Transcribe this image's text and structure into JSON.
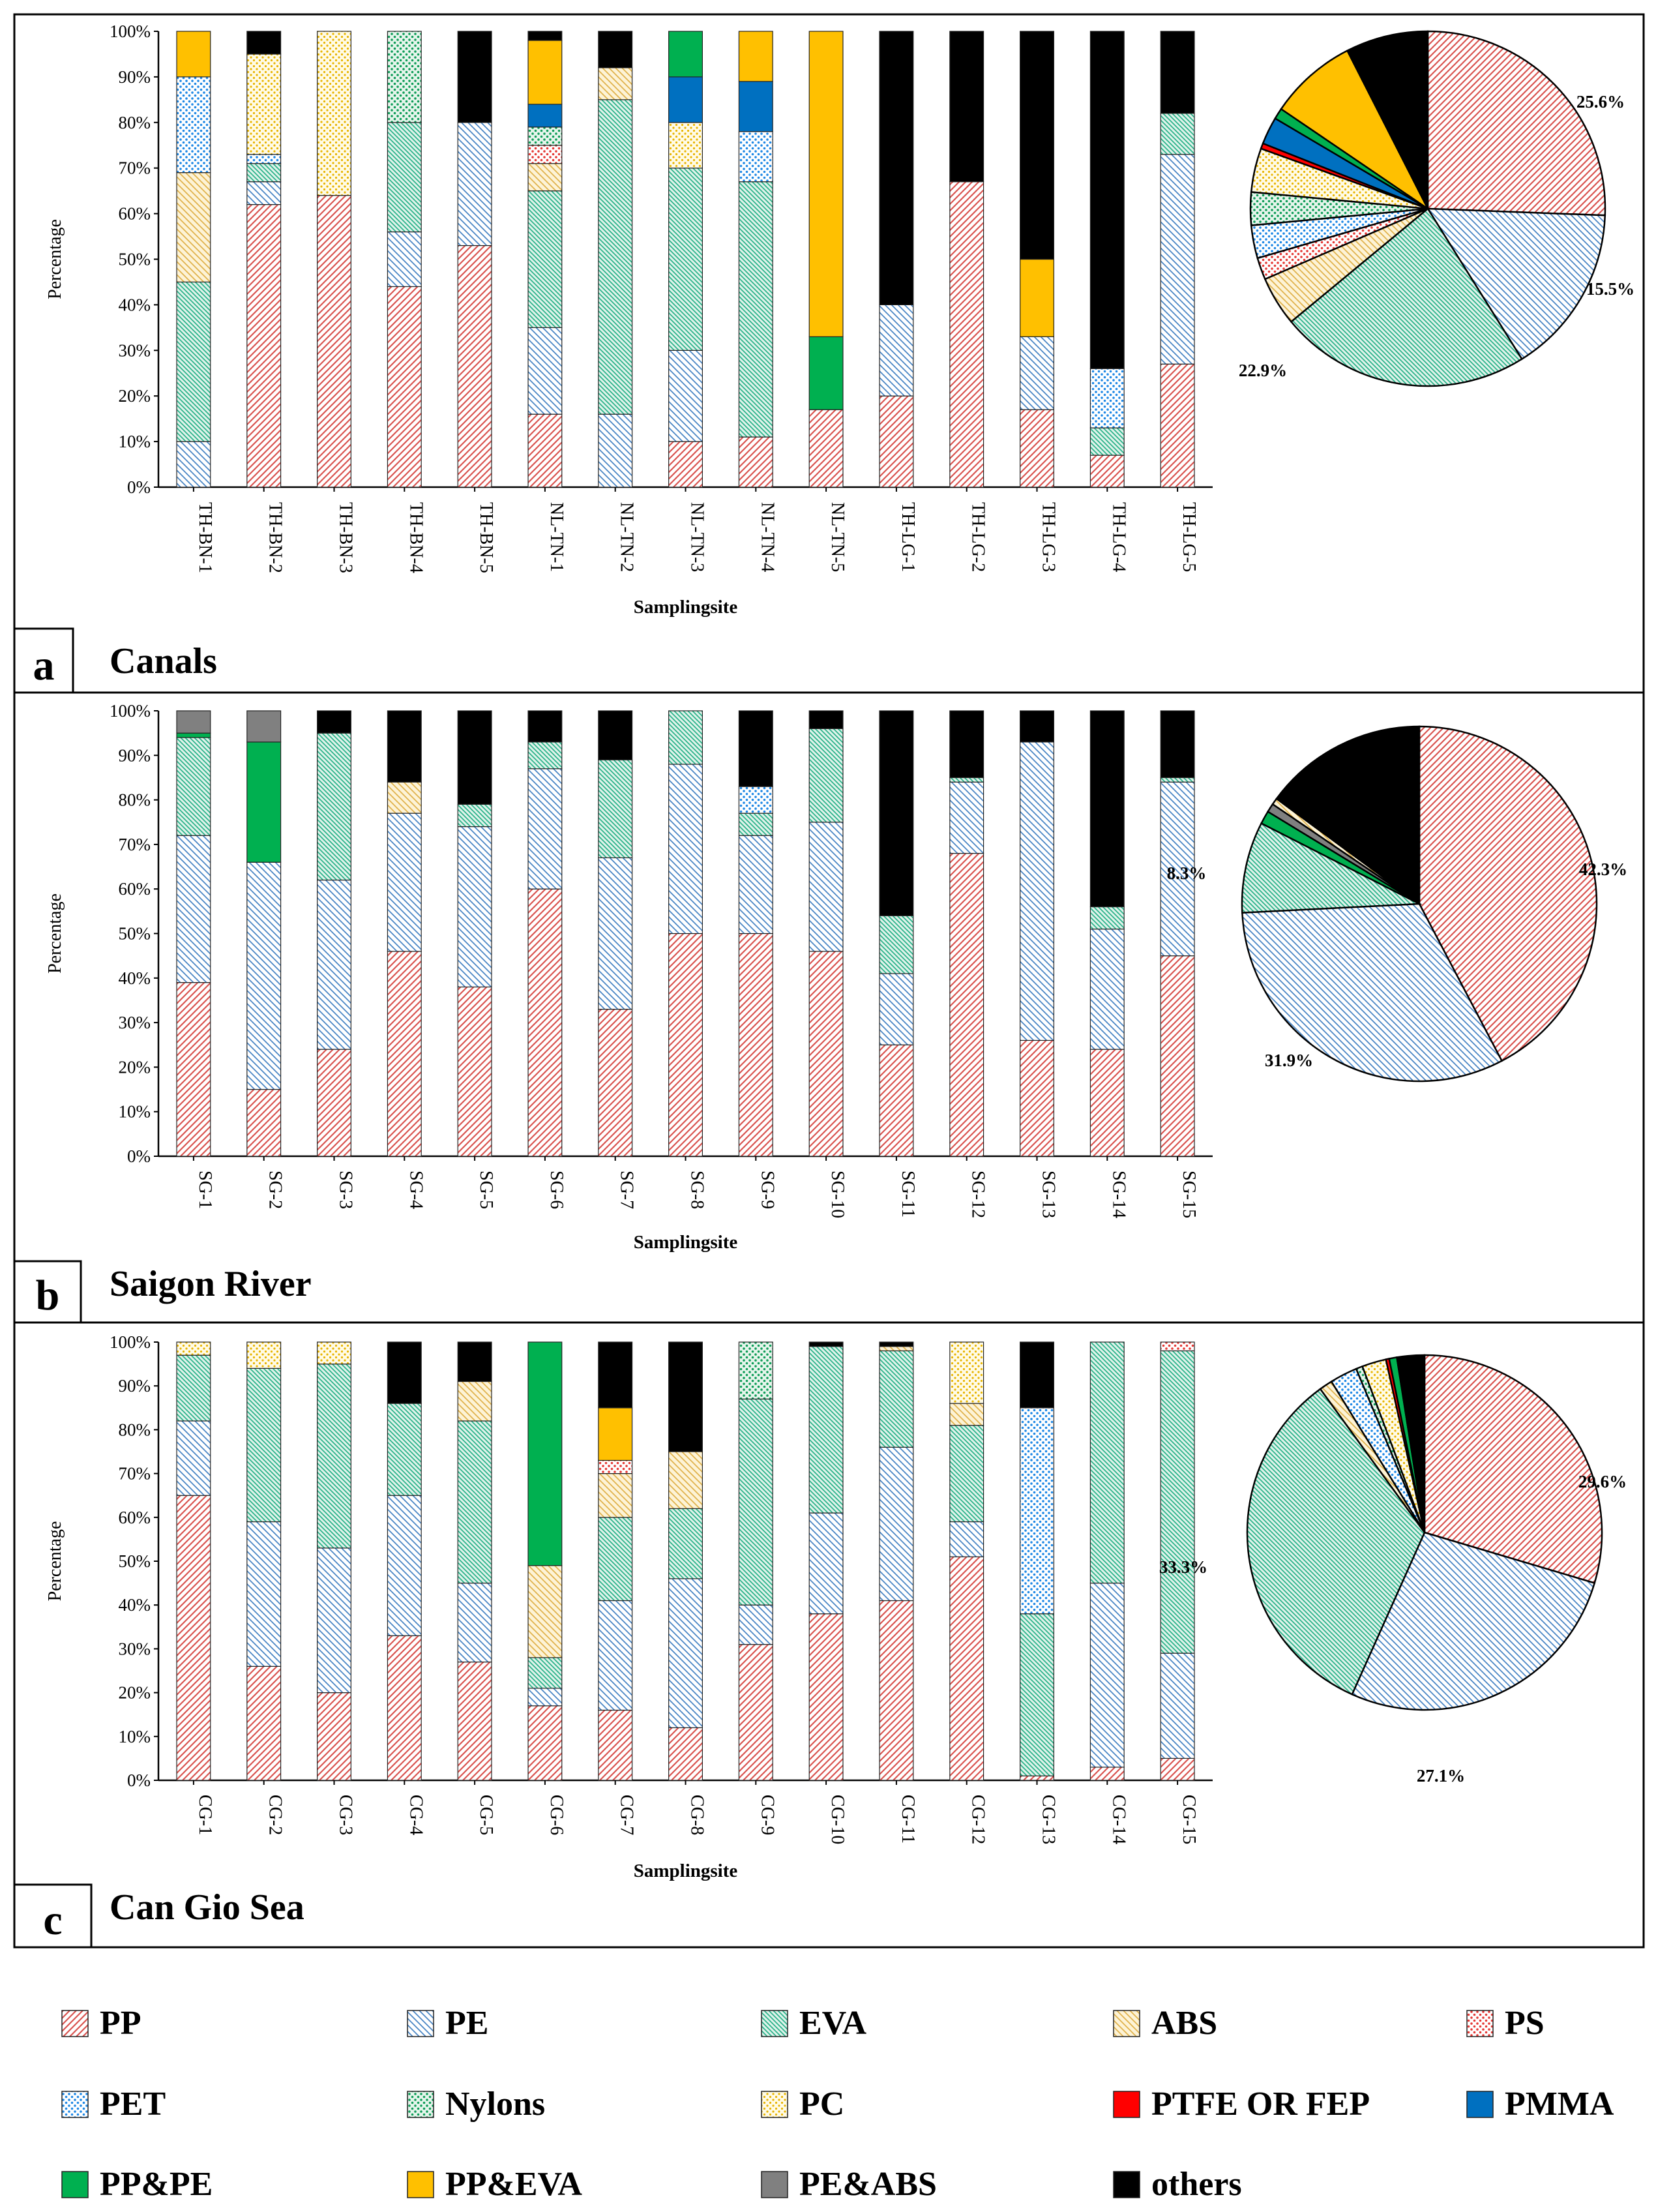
{
  "series": [
    "PP",
    "PE",
    "EVA",
    "ABS",
    "PS",
    "PET",
    "Nylons",
    "PC",
    "PTFE OR FEP",
    "PMMA",
    "PP&PE",
    "PP&EVA",
    "PE&ABS",
    "others"
  ],
  "styles": {
    "PP": {
      "color": "#d9534f",
      "pattern": "diag-fwd"
    },
    "PE": {
      "color": "#4a86c5",
      "pattern": "diag-bwd"
    },
    "EVA": {
      "color": "#2bb28a",
      "pattern": "diag-bwd-tight"
    },
    "ABS": {
      "color": "#e0b24c",
      "pattern": "diag-bwd"
    },
    "PS": {
      "color": "#e53935",
      "pattern": "dots-red"
    },
    "PET": {
      "color": "#1e88e5",
      "pattern": "dots-blue"
    },
    "Nylons": {
      "color": "#0f9d58",
      "pattern": "dots-green"
    },
    "PC": {
      "color": "#f2c200",
      "pattern": "dots-yellow"
    },
    "PTFE OR FEP": {
      "color": "#ff0000",
      "pattern": "solid"
    },
    "PMMA": {
      "color": "#0070c0",
      "pattern": "solid"
    },
    "PP&PE": {
      "color": "#00b050",
      "pattern": "solid"
    },
    "PP&EVA": {
      "color": "#ffc000",
      "pattern": "solid"
    },
    "PE&ABS": {
      "color": "#808080",
      "pattern": "solid"
    },
    "others": {
      "color": "#000000",
      "pattern": "solid"
    }
  },
  "chart_data": [
    {
      "type": "bar",
      "panel_letter": "a",
      "panel_title": "Canals",
      "xlabel": "Samplingsite",
      "ylabel": "Percentage",
      "ylim": [
        0,
        100
      ],
      "y_ticks": [
        "0%",
        "10%",
        "20%",
        "30%",
        "40%",
        "50%",
        "60%",
        "70%",
        "80%",
        "90%",
        "100%"
      ],
      "categories": [
        "TH-BN-1",
        "TH-BN-2",
        "TH-BN-3",
        "TH-BN-4",
        "TH-BN-5",
        "NL-TN-1",
        "NL-TN-2",
        "NL-TN-3",
        "NL-TN-4",
        "NL-TN-5",
        "TH-LG-1",
        "TH-LG-2",
        "TH-LG-3",
        "TH-LG-4",
        "TH-LG-5"
      ],
      "stacks": [
        [
          [
            "PE",
            10
          ],
          [
            "EVA",
            35
          ],
          [
            "ABS",
            24
          ],
          [
            "PET",
            21
          ],
          [
            "PP&EVA",
            10
          ]
        ],
        [
          [
            "PP",
            62
          ],
          [
            "PE",
            5
          ],
          [
            "EVA",
            4
          ],
          [
            "PET",
            2
          ],
          [
            "PC",
            22
          ],
          [
            "others",
            5
          ]
        ],
        [
          [
            "PP",
            64
          ],
          [
            "PC",
            36
          ]
        ],
        [
          [
            "PP",
            44
          ],
          [
            "PE",
            12
          ],
          [
            "EVA",
            24
          ],
          [
            "Nylons",
            20
          ]
        ],
        [
          [
            "PP",
            53
          ],
          [
            "PE",
            27
          ],
          [
            "others",
            20
          ]
        ],
        [
          [
            "PP",
            16
          ],
          [
            "PE",
            19
          ],
          [
            "EVA",
            30
          ],
          [
            "ABS",
            6
          ],
          [
            "PS",
            4
          ],
          [
            "Nylons",
            4
          ],
          [
            "PMMA",
            5
          ],
          [
            "PP&EVA",
            14
          ],
          [
            "others",
            2
          ]
        ],
        [
          [
            "PE",
            16
          ],
          [
            "EVA",
            69
          ],
          [
            "ABS",
            7
          ],
          [
            "others",
            8
          ]
        ],
        [
          [
            "PP",
            10
          ],
          [
            "PE",
            20
          ],
          [
            "EVA",
            40
          ],
          [
            "PC",
            10
          ],
          [
            "PMMA",
            10
          ],
          [
            "PP&PE",
            10
          ]
        ],
        [
          [
            "PP",
            11
          ],
          [
            "EVA",
            56
          ],
          [
            "PET",
            11
          ],
          [
            "PMMA",
            11
          ],
          [
            "PP&EVA",
            11
          ]
        ],
        [
          [
            "PP",
            17
          ],
          [
            "PP&PE",
            16
          ],
          [
            "PP&EVA",
            67
          ]
        ],
        [
          [
            "PP",
            20
          ],
          [
            "PE",
            20
          ],
          [
            "others",
            60
          ]
        ],
        [
          [
            "PP",
            67
          ],
          [
            "others",
            33
          ]
        ],
        [
          [
            "PP",
            17
          ],
          [
            "PE",
            16
          ],
          [
            "PP&EVA",
            17
          ],
          [
            "others",
            50
          ]
        ],
        [
          [
            "PP",
            7
          ],
          [
            "EVA",
            6
          ],
          [
            "PET",
            13
          ],
          [
            "others",
            74
          ]
        ],
        [
          [
            "PP",
            27
          ],
          [
            "PE",
            46
          ],
          [
            "EVA",
            9
          ],
          [
            "others",
            18
          ]
        ]
      ],
      "pie": [
        [
          "PP",
          25.6
        ],
        [
          "PE",
          15.5
        ],
        [
          "EVA",
          22.9
        ],
        [
          "ABS",
          4.5
        ],
        [
          "PS",
          2
        ],
        [
          "PET",
          3
        ],
        [
          "Nylons",
          3
        ],
        [
          "PC",
          4
        ],
        [
          "PTFE OR FEP",
          0.5
        ],
        [
          "PMMA",
          2.5
        ],
        [
          "PP&PE",
          1
        ],
        [
          "PP&EVA",
          8
        ],
        [
          "others",
          7.5
        ]
      ],
      "pie_labels": [
        [
          "PP",
          "25.6%"
        ],
        [
          "PE",
          "15.5%"
        ],
        [
          "EVA",
          "22.9%"
        ]
      ]
    },
    {
      "type": "bar",
      "panel_letter": "b",
      "panel_title": "Saigon River",
      "xlabel": "Samplingsite",
      "ylabel": "Percentage",
      "ylim": [
        0,
        100
      ],
      "y_ticks": [
        "0%",
        "10%",
        "20%",
        "30%",
        "40%",
        "50%",
        "60%",
        "70%",
        "80%",
        "90%",
        "100%"
      ],
      "categories": [
        "SG-1",
        "SG-2",
        "SG-3",
        "SG-4",
        "SG-5",
        "SG-6",
        "SG-7",
        "SG-8",
        "SG-9",
        "SG-10",
        "SG-11",
        "SG-12",
        "SG-13",
        "SG-14",
        "SG-15"
      ],
      "stacks": [
        [
          [
            "PP",
            39
          ],
          [
            "PE",
            33
          ],
          [
            "EVA",
            22
          ],
          [
            "PP&PE",
            1
          ],
          [
            "PE&ABS",
            5
          ]
        ],
        [
          [
            "PP",
            15
          ],
          [
            "PE",
            51
          ],
          [
            "PP&PE",
            27
          ],
          [
            "PE&ABS",
            7
          ]
        ],
        [
          [
            "PP",
            24
          ],
          [
            "PE",
            38
          ],
          [
            "EVA",
            33
          ],
          [
            "others",
            5
          ]
        ],
        [
          [
            "PP",
            46
          ],
          [
            "PE",
            31
          ],
          [
            "ABS",
            7
          ],
          [
            "others",
            16
          ]
        ],
        [
          [
            "PP",
            38
          ],
          [
            "PE",
            36
          ],
          [
            "EVA",
            5
          ],
          [
            "others",
            21
          ]
        ],
        [
          [
            "PP",
            60
          ],
          [
            "PE",
            27
          ],
          [
            "EVA",
            6
          ],
          [
            "others",
            7
          ]
        ],
        [
          [
            "PP",
            33
          ],
          [
            "PE",
            34
          ],
          [
            "EVA",
            22
          ],
          [
            "others",
            11
          ]
        ],
        [
          [
            "PP",
            50
          ],
          [
            "PE",
            38
          ],
          [
            "EVA",
            12
          ]
        ],
        [
          [
            "PP",
            50
          ],
          [
            "PE",
            22
          ],
          [
            "EVA",
            5
          ],
          [
            "PET",
            6
          ],
          [
            "others",
            17
          ]
        ],
        [
          [
            "PP",
            46
          ],
          [
            "PE",
            29
          ],
          [
            "EVA",
            21
          ],
          [
            "others",
            4
          ]
        ],
        [
          [
            "PP",
            25
          ],
          [
            "PE",
            16
          ],
          [
            "EVA",
            13
          ],
          [
            "others",
            46
          ]
        ],
        [
          [
            "PP",
            68
          ],
          [
            "PE",
            16
          ],
          [
            "EVA",
            1
          ],
          [
            "others",
            15
          ]
        ],
        [
          [
            "PP",
            26
          ],
          [
            "PE",
            67
          ],
          [
            "others",
            7
          ]
        ],
        [
          [
            "PP",
            24
          ],
          [
            "PE",
            27
          ],
          [
            "EVA",
            5
          ],
          [
            "others",
            44
          ]
        ],
        [
          [
            "PP",
            45
          ],
          [
            "PE",
            39
          ],
          [
            "EVA",
            1
          ],
          [
            "others",
            15
          ]
        ]
      ],
      "pie": [
        [
          "PP",
          42.3
        ],
        [
          "PE",
          31.9
        ],
        [
          "EVA",
          8.3
        ],
        [
          "PP&PE",
          1.2
        ],
        [
          "PE&ABS",
          0.8
        ],
        [
          "ABS",
          0.6
        ],
        [
          "others",
          14.9
        ]
      ],
      "pie_labels": [
        [
          "PP",
          "42.3%"
        ],
        [
          "PE",
          "31.9%"
        ],
        [
          "EVA",
          "8.3%"
        ]
      ]
    },
    {
      "type": "bar",
      "panel_letter": "c",
      "panel_title": "Can Gio Sea",
      "xlabel": "Samplingsite",
      "ylabel": "Percentage",
      "ylim": [
        0,
        100
      ],
      "y_ticks": [
        "0%",
        "10%",
        "20%",
        "30%",
        "40%",
        "50%",
        "60%",
        "70%",
        "80%",
        "90%",
        "100%"
      ],
      "categories": [
        "CG-1",
        "CG-2",
        "CG-3",
        "CG-4",
        "CG-5",
        "CG-6",
        "CG-7",
        "CG-8",
        "CG-9",
        "CG-10",
        "CG-11",
        "CG-12",
        "CG-13",
        "CG-14",
        "CG-15"
      ],
      "stacks": [
        [
          [
            "PP",
            65
          ],
          [
            "PE",
            17
          ],
          [
            "EVA",
            15
          ],
          [
            "PC",
            3
          ]
        ],
        [
          [
            "PP",
            26
          ],
          [
            "PE",
            33
          ],
          [
            "EVA",
            35
          ],
          [
            "PC",
            6
          ]
        ],
        [
          [
            "PP",
            20
          ],
          [
            "PE",
            33
          ],
          [
            "EVA",
            42
          ],
          [
            "PC",
            5
          ]
        ],
        [
          [
            "PP",
            33
          ],
          [
            "PE",
            32
          ],
          [
            "EVA",
            21
          ],
          [
            "others",
            14
          ]
        ],
        [
          [
            "PP",
            27
          ],
          [
            "PE",
            18
          ],
          [
            "EVA",
            37
          ],
          [
            "ABS",
            9
          ],
          [
            "others",
            9
          ]
        ],
        [
          [
            "PP",
            17
          ],
          [
            "PE",
            4
          ],
          [
            "EVA",
            7
          ],
          [
            "ABS",
            21
          ],
          [
            "PP&PE",
            51
          ]
        ],
        [
          [
            "PP",
            16
          ],
          [
            "PE",
            25
          ],
          [
            "EVA",
            19
          ],
          [
            "ABS",
            10
          ],
          [
            "PS",
            3
          ],
          [
            "PP&EVA",
            12
          ],
          [
            "others",
            15
          ]
        ],
        [
          [
            "PP",
            12
          ],
          [
            "PE",
            34
          ],
          [
            "EVA",
            16
          ],
          [
            "ABS",
            13
          ],
          [
            "others",
            25
          ]
        ],
        [
          [
            "PP",
            31
          ],
          [
            "PE",
            9
          ],
          [
            "EVA",
            47
          ],
          [
            "Nylons",
            13
          ]
        ],
        [
          [
            "PP",
            38
          ],
          [
            "PE",
            23
          ],
          [
            "EVA",
            38
          ],
          [
            "others",
            1
          ]
        ],
        [
          [
            "PP",
            41
          ],
          [
            "PE",
            35
          ],
          [
            "EVA",
            22
          ],
          [
            "ABS",
            1
          ],
          [
            "others",
            1
          ]
        ],
        [
          [
            "PP",
            51
          ],
          [
            "PE",
            8
          ],
          [
            "EVA",
            22
          ],
          [
            "ABS",
            5
          ],
          [
            "PC",
            14
          ]
        ],
        [
          [
            "PP",
            1
          ],
          [
            "EVA",
            37
          ],
          [
            "PET",
            47
          ],
          [
            "others",
            15
          ]
        ],
        [
          [
            "PP",
            3
          ],
          [
            "PE",
            42
          ],
          [
            "EVA",
            55
          ]
        ],
        [
          [
            "PP",
            5
          ],
          [
            "PE",
            24
          ],
          [
            "EVA",
            69
          ],
          [
            "PS",
            2
          ]
        ]
      ],
      "pie": [
        [
          "PP",
          29.6
        ],
        [
          "PE",
          27.1
        ],
        [
          "EVA",
          33.3
        ],
        [
          "ABS",
          1.2
        ],
        [
          "PET",
          2.5
        ],
        [
          "Nylons",
          0.6
        ],
        [
          "PC",
          2.2
        ],
        [
          "PTFE OR FEP",
          0.3
        ],
        [
          "PP&PE",
          0.7
        ],
        [
          "others",
          2.5
        ]
      ],
      "pie_labels": [
        [
          "PP",
          "29.6%"
        ],
        [
          "PE",
          "27.1%"
        ],
        [
          "EVA",
          "33.3%"
        ]
      ]
    }
  ]
}
